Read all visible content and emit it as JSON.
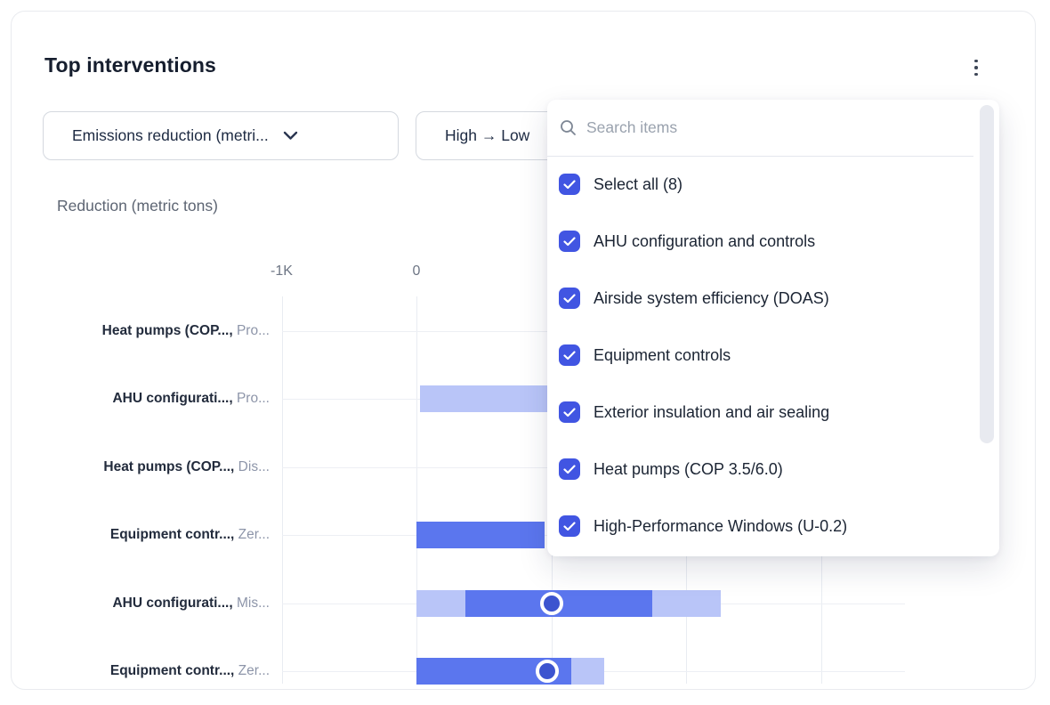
{
  "card": {
    "title": "Top interventions"
  },
  "filters": {
    "metric_dropdown": {
      "value": "Emissions reduction (metri..."
    },
    "sort_dropdown": {
      "value": "High → Low"
    }
  },
  "dropdown_panel": {
    "search": {
      "placeholder": "Search items"
    },
    "items": [
      {
        "label": "Select all (8)",
        "checked": true
      },
      {
        "label": "AHU configuration and controls",
        "checked": true
      },
      {
        "label": "Airside system efficiency (DOAS)",
        "checked": true
      },
      {
        "label": "Equipment controls",
        "checked": true
      },
      {
        "label": "Exterior insulation and air sealing",
        "checked": true
      },
      {
        "label": "Heat pumps (COP 3.5/6.0)",
        "checked": true
      },
      {
        "label": "High-Performance Windows (U-0.2)",
        "checked": true
      }
    ]
  },
  "chart_data": {
    "type": "bar",
    "orientation": "horizontal",
    "title": "Reduction (metric tons)",
    "unit": "metric tons",
    "grid": true,
    "xlim": [
      -1000,
      3620
    ],
    "x_ticks": [
      {
        "label": "-1K",
        "value": -1000
      },
      {
        "label": "0",
        "value": 0
      },
      {
        "label": "",
        "value": 1000
      },
      {
        "label": "",
        "value": 2000
      },
      {
        "label": "",
        "value": 3000
      }
    ],
    "rows": [
      {
        "category": "Heat pumps (COP...,",
        "scenario": "Pro...",
        "segments": [],
        "marker": null
      },
      {
        "category": "AHU configurati...,",
        "scenario": "Pro...",
        "segments": [
          {
            "shade": "light",
            "from": 25,
            "to": 1300
          }
        ],
        "marker": null
      },
      {
        "category": "Heat pumps (COP...,",
        "scenario": "Dis...",
        "segments": [],
        "marker": null
      },
      {
        "category": "Equipment contr...,",
        "scenario": "Zer...",
        "segments": [
          {
            "shade": "dark",
            "from": 0,
            "to": 950
          }
        ],
        "marker": null
      },
      {
        "category": "AHU configurati...,",
        "scenario": "Mis...",
        "segments": [
          {
            "shade": "light",
            "from": 0,
            "to": 360
          },
          {
            "shade": "dark",
            "from": 360,
            "to": 1750
          },
          {
            "shade": "light",
            "from": 1750,
            "to": 2260
          }
        ],
        "marker": 1000
      },
      {
        "category": "Equipment contr...,",
        "scenario": "Zer...",
        "segments": [
          {
            "shade": "dark",
            "from": 0,
            "to": 1150
          },
          {
            "shade": "light",
            "from": 1150,
            "to": 1390
          }
        ],
        "marker": 970
      }
    ],
    "colors": {
      "bar_dark": "#5b76ee",
      "bar_light": "#b9c5f8",
      "marker_fill": "#3c54cf",
      "marker_ring": "#ffffff"
    }
  },
  "colors": {
    "accent": "#4155e2",
    "title_text": "#161e2e",
    "grid": "#e9ecf2"
  }
}
